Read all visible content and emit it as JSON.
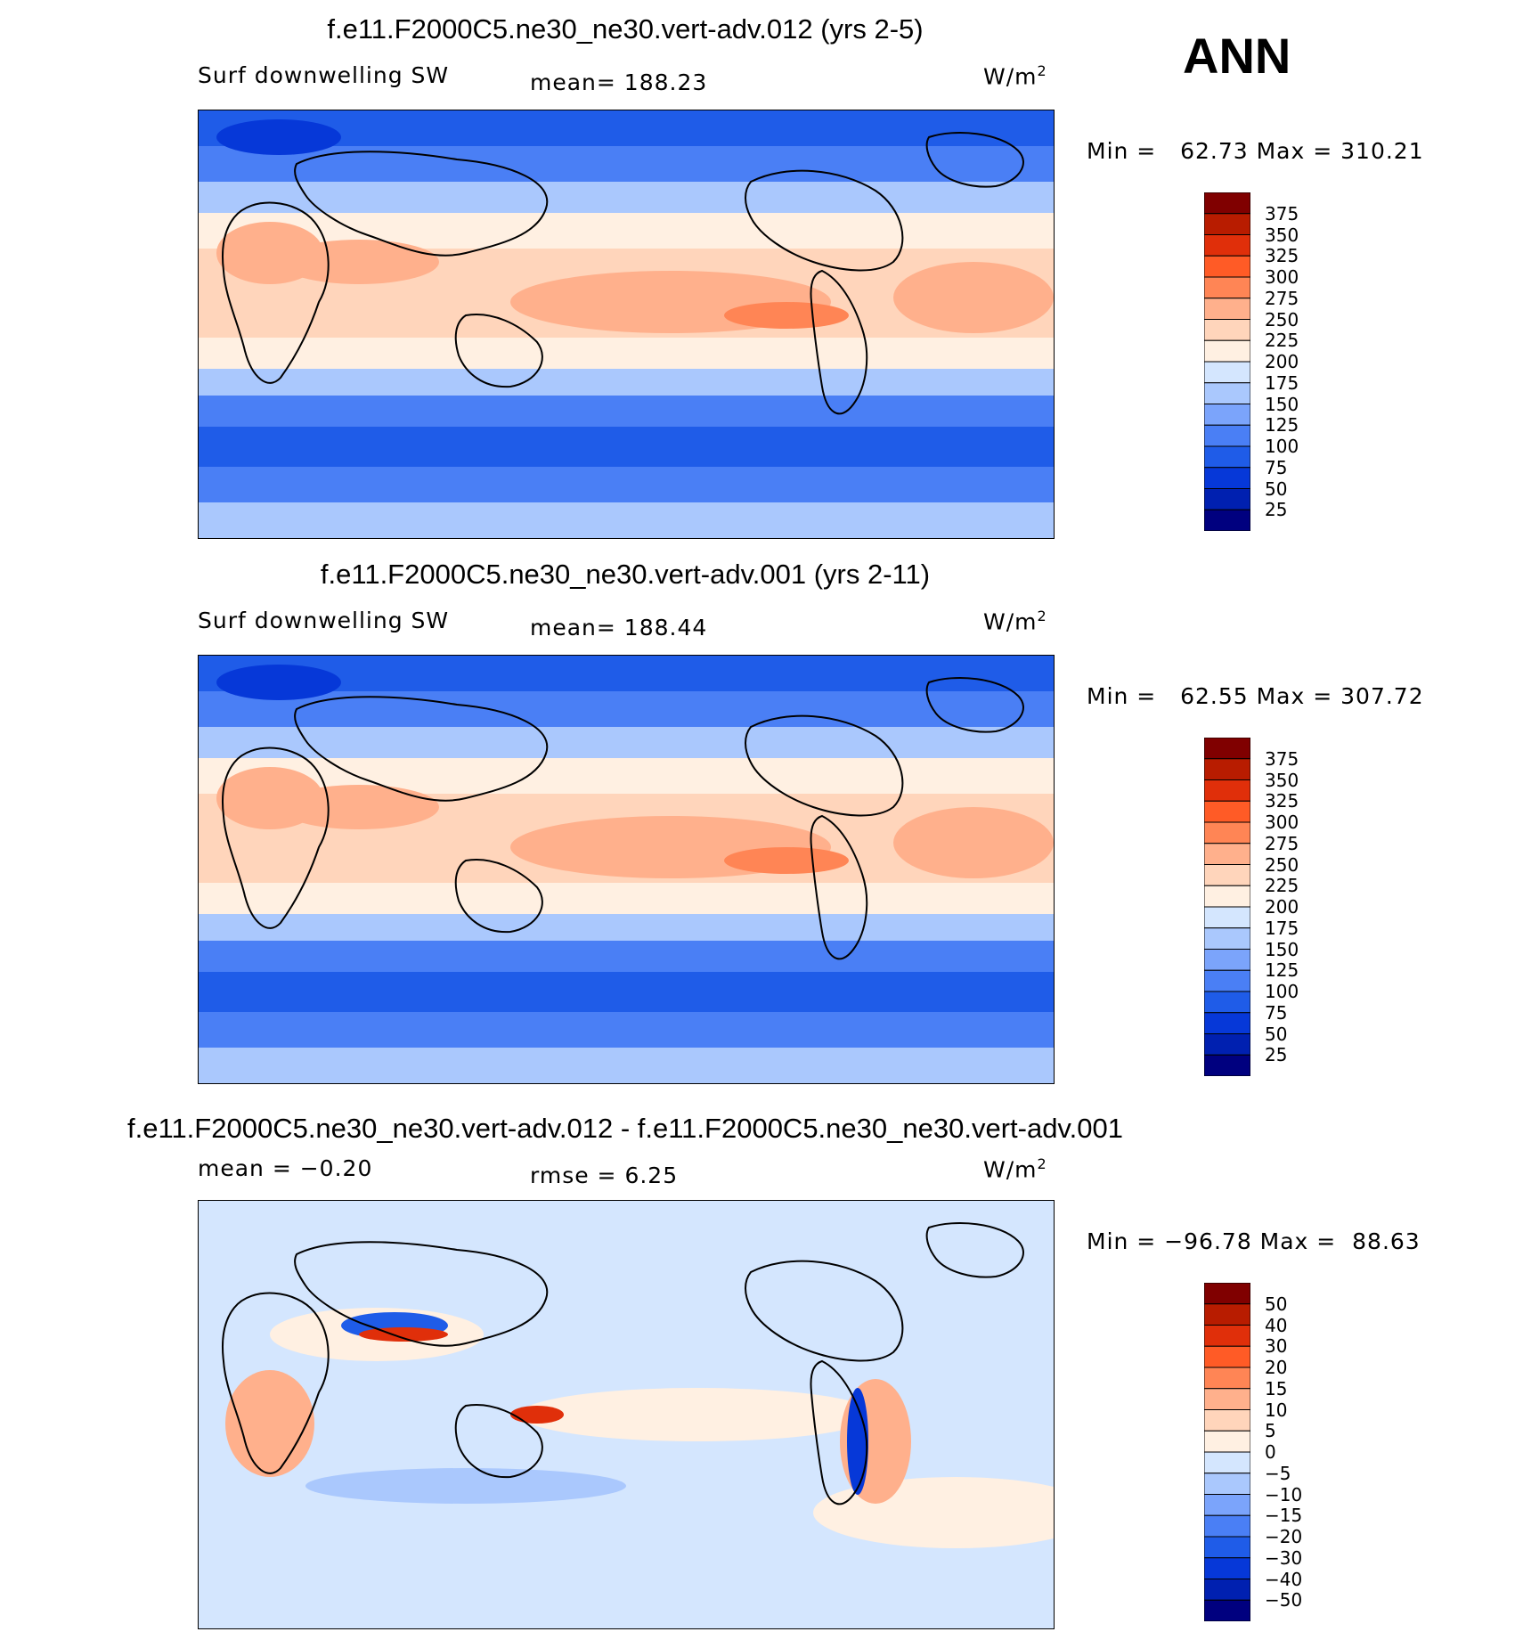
{
  "season": "ANN",
  "colors": {
    "abs": [
      "#00007f",
      "#0020b0",
      "#0638d8",
      "#1f5ce8",
      "#4a7ff5",
      "#7ba4fb",
      "#aac8fd",
      "#d4e6fe",
      "#fff0e2",
      "#ffd5bb",
      "#ffb08c",
      "#ff8555",
      "#ff5b26",
      "#e02f0a",
      "#b81c00",
      "#800000"
    ],
    "diff": [
      "#00007f",
      "#0020b0",
      "#0638d8",
      "#1f5ce8",
      "#4a7ff5",
      "#7ba4fb",
      "#aac8fd",
      "#d4e6fe",
      "#fff0e2",
      "#ffd5bb",
      "#ffb08c",
      "#ff8555",
      "#ff5b26",
      "#e02f0a",
      "#b81c00",
      "#800000"
    ]
  },
  "panels": [
    {
      "title": "f.e11.F2000C5.ne30_ne30.vert-adv.012 (yrs 2-5)",
      "left_label": "Surf downwelling SW",
      "mean_text": "mean= 188.23",
      "rmse_text": "",
      "units": "W/m",
      "units_sup": "2",
      "minmax": "Min =   62.73 Max = 310.21",
      "kind": "abs"
    },
    {
      "title": "f.e11.F2000C5.ne30_ne30.vert-adv.001 (yrs 2-11)",
      "left_label": "Surf downwelling SW",
      "mean_text": "mean= 188.44",
      "rmse_text": "",
      "units": "W/m",
      "units_sup": "2",
      "minmax": "Min =   62.55 Max = 307.72",
      "kind": "abs"
    },
    {
      "title": "f.e11.F2000C5.ne30_ne30.vert-adv.012 - f.e11.F2000C5.ne30_ne30.vert-adv.001",
      "left_label": "mean =   −0.20",
      "mean_text": "rmse =    6.25",
      "rmse_text": "",
      "units": "W/m",
      "units_sup": "2",
      "minmax": "Min = −96.78 Max =  88.63",
      "kind": "diff"
    }
  ],
  "chart_data": [
    {
      "type": "heatmap",
      "title": "f.e11.F2000C5.ne30_ne30.vert-adv.012 (yrs 2-5)",
      "variable": "Surf downwelling SW",
      "units": "W/m2",
      "mean": 188.23,
      "min": 62.73,
      "max": 310.21,
      "colorbar_levels": [
        375,
        350,
        325,
        300,
        275,
        250,
        225,
        200,
        175,
        150,
        125,
        100,
        75,
        50,
        25
      ]
    },
    {
      "type": "heatmap",
      "title": "f.e11.F2000C5.ne30_ne30.vert-adv.001 (yrs 2-11)",
      "variable": "Surf downwelling SW",
      "units": "W/m2",
      "mean": 188.44,
      "min": 62.55,
      "max": 307.72,
      "colorbar_levels": [
        375,
        350,
        325,
        300,
        275,
        250,
        225,
        200,
        175,
        150,
        125,
        100,
        75,
        50,
        25
      ]
    },
    {
      "type": "heatmap",
      "title": "f.e11.F2000C5.ne30_ne30.vert-adv.012 - f.e11.F2000C5.ne30_ne30.vert-adv.001",
      "units": "W/m2",
      "mean": -0.2,
      "rmse": 6.25,
      "min": -96.78,
      "max": 88.63,
      "colorbar_levels": [
        "50",
        "40",
        "30",
        "20",
        "15",
        "10",
        "5",
        "0",
        "−5",
        "−10",
        "−15",
        "−20",
        "−30",
        "−40",
        "−50"
      ]
    }
  ]
}
